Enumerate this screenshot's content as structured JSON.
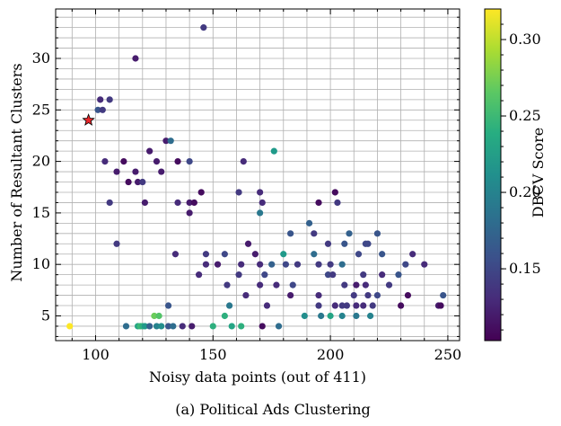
{
  "chart_data": {
    "type": "scatter",
    "caption": "(a) Political Ads Clustering",
    "xlabel": "Noisy data points (out of 411)",
    "ylabel": "Number of Resultant Clusters",
    "xlim": [
      83,
      255
    ],
    "ylim": [
      2.6,
      34.8
    ],
    "xticks": [
      100,
      150,
      200,
      250
    ],
    "yticks": [
      5,
      10,
      15,
      20,
      25,
      30
    ],
    "grid": true,
    "colorbar": {
      "label": "DBCV Score",
      "range": [
        0.103,
        0.32
      ],
      "ticks": [
        0.15,
        0.2,
        0.25,
        0.3
      ],
      "tick_labels": [
        "0.15",
        "0.20",
        "0.25",
        "0.30"
      ],
      "colormap": "viridis"
    },
    "highlight": {
      "x": 97,
      "y": 24,
      "marker": "star",
      "color": "#e8262a"
    },
    "points": [
      [
        89,
        4,
        0.32
      ],
      [
        146,
        33,
        0.14
      ],
      [
        117,
        30,
        0.12
      ],
      [
        102,
        26,
        0.13
      ],
      [
        106,
        26,
        0.14
      ],
      [
        101,
        25,
        0.16
      ],
      [
        103,
        25,
        0.14
      ],
      [
        130,
        22,
        0.12
      ],
      [
        132,
        22,
        0.18
      ],
      [
        123,
        21,
        0.12
      ],
      [
        140,
        20,
        0.15
      ],
      [
        104,
        20,
        0.13
      ],
      [
        112,
        20,
        0.11
      ],
      [
        126,
        20,
        0.12
      ],
      [
        135,
        20,
        0.11
      ],
      [
        163,
        20,
        0.13
      ],
      [
        176,
        21,
        0.22
      ],
      [
        109,
        19,
        0.12
      ],
      [
        117,
        19,
        0.12
      ],
      [
        128,
        19,
        0.12
      ],
      [
        114,
        18,
        0.11
      ],
      [
        118,
        18,
        0.12
      ],
      [
        120,
        18,
        0.14
      ],
      [
        145,
        17,
        0.11
      ],
      [
        161,
        17,
        0.14
      ],
      [
        170,
        17,
        0.13
      ],
      [
        202,
        17,
        0.11
      ],
      [
        106,
        16,
        0.14
      ],
      [
        121,
        16,
        0.12
      ],
      [
        135,
        16,
        0.13
      ],
      [
        140,
        16,
        0.12
      ],
      [
        142,
        16,
        0.11
      ],
      [
        171,
        16,
        0.13
      ],
      [
        195,
        16,
        0.11
      ],
      [
        203,
        16,
        0.14
      ],
      [
        140,
        15,
        0.12
      ],
      [
        170,
        15,
        0.19
      ],
      [
        191,
        14,
        0.17
      ],
      [
        183,
        13,
        0.16
      ],
      [
        208,
        13,
        0.17
      ],
      [
        220,
        13,
        0.16
      ],
      [
        193,
        13,
        0.14
      ],
      [
        109,
        12,
        0.14
      ],
      [
        165,
        12,
        0.12
      ],
      [
        199,
        12,
        0.14
      ],
      [
        206,
        12,
        0.16
      ],
      [
        215,
        12,
        0.15
      ],
      [
        216,
        12,
        0.15
      ],
      [
        134,
        11,
        0.13
      ],
      [
        147,
        11,
        0.14
      ],
      [
        155,
        11,
        0.15
      ],
      [
        168,
        11,
        0.12
      ],
      [
        180,
        11,
        0.22
      ],
      [
        193,
        11,
        0.18
      ],
      [
        212,
        11,
        0.15
      ],
      [
        222,
        11,
        0.16
      ],
      [
        235,
        11,
        0.13
      ],
      [
        147,
        10,
        0.13
      ],
      [
        152,
        10,
        0.12
      ],
      [
        162,
        10,
        0.13
      ],
      [
        170,
        10,
        0.13
      ],
      [
        175,
        10,
        0.17
      ],
      [
        181,
        10,
        0.15
      ],
      [
        186,
        10,
        0.14
      ],
      [
        195,
        10,
        0.14
      ],
      [
        200,
        10,
        0.14
      ],
      [
        205,
        10,
        0.18
      ],
      [
        232,
        10,
        0.15
      ],
      [
        240,
        10,
        0.13
      ],
      [
        144,
        9,
        0.13
      ],
      [
        161,
        9,
        0.14
      ],
      [
        172,
        9,
        0.15
      ],
      [
        199,
        9,
        0.15
      ],
      [
        201,
        9,
        0.14
      ],
      [
        214,
        9,
        0.14
      ],
      [
        222,
        9,
        0.13
      ],
      [
        229,
        9,
        0.16
      ],
      [
        156,
        8,
        0.14
      ],
      [
        170,
        8,
        0.13
      ],
      [
        177,
        8,
        0.13
      ],
      [
        206,
        8,
        0.14
      ],
      [
        211,
        8,
        0.12
      ],
      [
        215,
        8,
        0.13
      ],
      [
        225,
        8,
        0.14
      ],
      [
        184,
        8,
        0.15
      ],
      [
        164,
        7,
        0.13
      ],
      [
        183,
        7,
        0.12
      ],
      [
        195,
        7,
        0.13
      ],
      [
        210,
        7,
        0.14
      ],
      [
        216,
        7,
        0.14
      ],
      [
        220,
        7,
        0.15
      ],
      [
        233,
        7,
        0.11
      ],
      [
        248,
        7,
        0.16
      ],
      [
        131,
        6,
        0.16
      ],
      [
        157,
        6,
        0.19
      ],
      [
        173,
        6,
        0.13
      ],
      [
        195,
        6,
        0.14
      ],
      [
        202,
        6,
        0.13
      ],
      [
        205,
        6,
        0.14
      ],
      [
        207,
        6,
        0.14
      ],
      [
        211,
        6,
        0.13
      ],
      [
        214,
        6,
        0.13
      ],
      [
        218,
        6,
        0.14
      ],
      [
        230,
        6,
        0.11
      ],
      [
        246,
        6,
        0.12
      ],
      [
        247,
        6,
        0.11
      ],
      [
        125,
        5,
        0.27
      ],
      [
        127,
        5,
        0.26
      ],
      [
        155,
        5,
        0.24
      ],
      [
        189,
        5,
        0.21
      ],
      [
        196,
        5,
        0.19
      ],
      [
        200,
        5,
        0.23
      ],
      [
        205,
        5,
        0.2
      ],
      [
        211,
        5,
        0.19
      ],
      [
        217,
        5,
        0.2
      ],
      [
        113,
        4,
        0.18
      ],
      [
        118,
        4,
        0.23
      ],
      [
        119,
        4,
        0.25
      ],
      [
        120,
        4,
        0.24
      ],
      [
        121,
        4,
        0.22
      ],
      [
        123,
        4,
        0.17
      ],
      [
        126,
        4,
        0.2
      ],
      [
        128,
        4,
        0.21
      ],
      [
        131,
        4,
        0.16
      ],
      [
        133,
        4,
        0.18
      ],
      [
        137,
        4,
        0.13
      ],
      [
        141,
        4,
        0.12
      ],
      [
        150,
        4,
        0.24
      ],
      [
        158,
        4,
        0.23
      ],
      [
        162,
        4,
        0.24
      ],
      [
        171,
        4,
        0.11
      ],
      [
        178,
        4,
        0.18
      ]
    ]
  }
}
